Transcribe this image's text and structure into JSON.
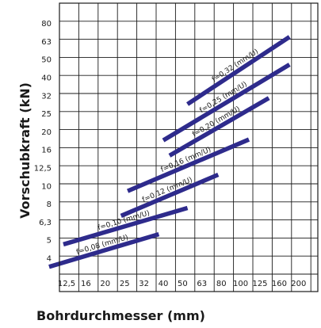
{
  "chart_data": {
    "type": "line",
    "xlabel": "Bohrdurchmesser (mm)",
    "ylabel": "Vorschubkraft (kN)",
    "scale": "log-log",
    "grid": true,
    "line_color": "#2e2b8c",
    "x_ticks": [
      "12,5",
      "16",
      "20",
      "25",
      "32",
      "40",
      "50",
      "63",
      "80",
      "100",
      "125",
      "160",
      "200"
    ],
    "y_ticks": [
      "4",
      "5",
      "6,3",
      "8",
      "10",
      "12,5",
      "16",
      "20",
      "25",
      "32",
      "40",
      "50",
      "63",
      "80"
    ],
    "series": [
      {
        "name": "f=0,08 (mm/U)",
        "x": [
          10,
          38
        ],
        "y": [
          3.6,
          5.4
        ]
      },
      {
        "name": "f=0,10 (mm/U)",
        "x": [
          12,
          53
        ],
        "y": [
          4.75,
          7.6
        ]
      },
      {
        "name": "f=0,12 (mm/U)",
        "x": [
          24,
          77
        ],
        "y": [
          6.85,
          11.5
        ]
      },
      {
        "name": "f=0,16 (mm/U)",
        "x": [
          26,
          110
        ],
        "y": [
          9.4,
          18.2
        ]
      },
      {
        "name": "f=0,20 (mm/U)",
        "x": [
          43,
          140
        ],
        "y": [
          14.8,
          31
        ]
      },
      {
        "name": "f=0,25 (mm/U)",
        "x": [
          40,
          180
        ],
        "y": [
          18,
          47
        ]
      },
      {
        "name": "f=0,32 (mm/U)",
        "x": [
          53,
          180
        ],
        "y": [
          28.5,
          67
        ]
      }
    ]
  }
}
